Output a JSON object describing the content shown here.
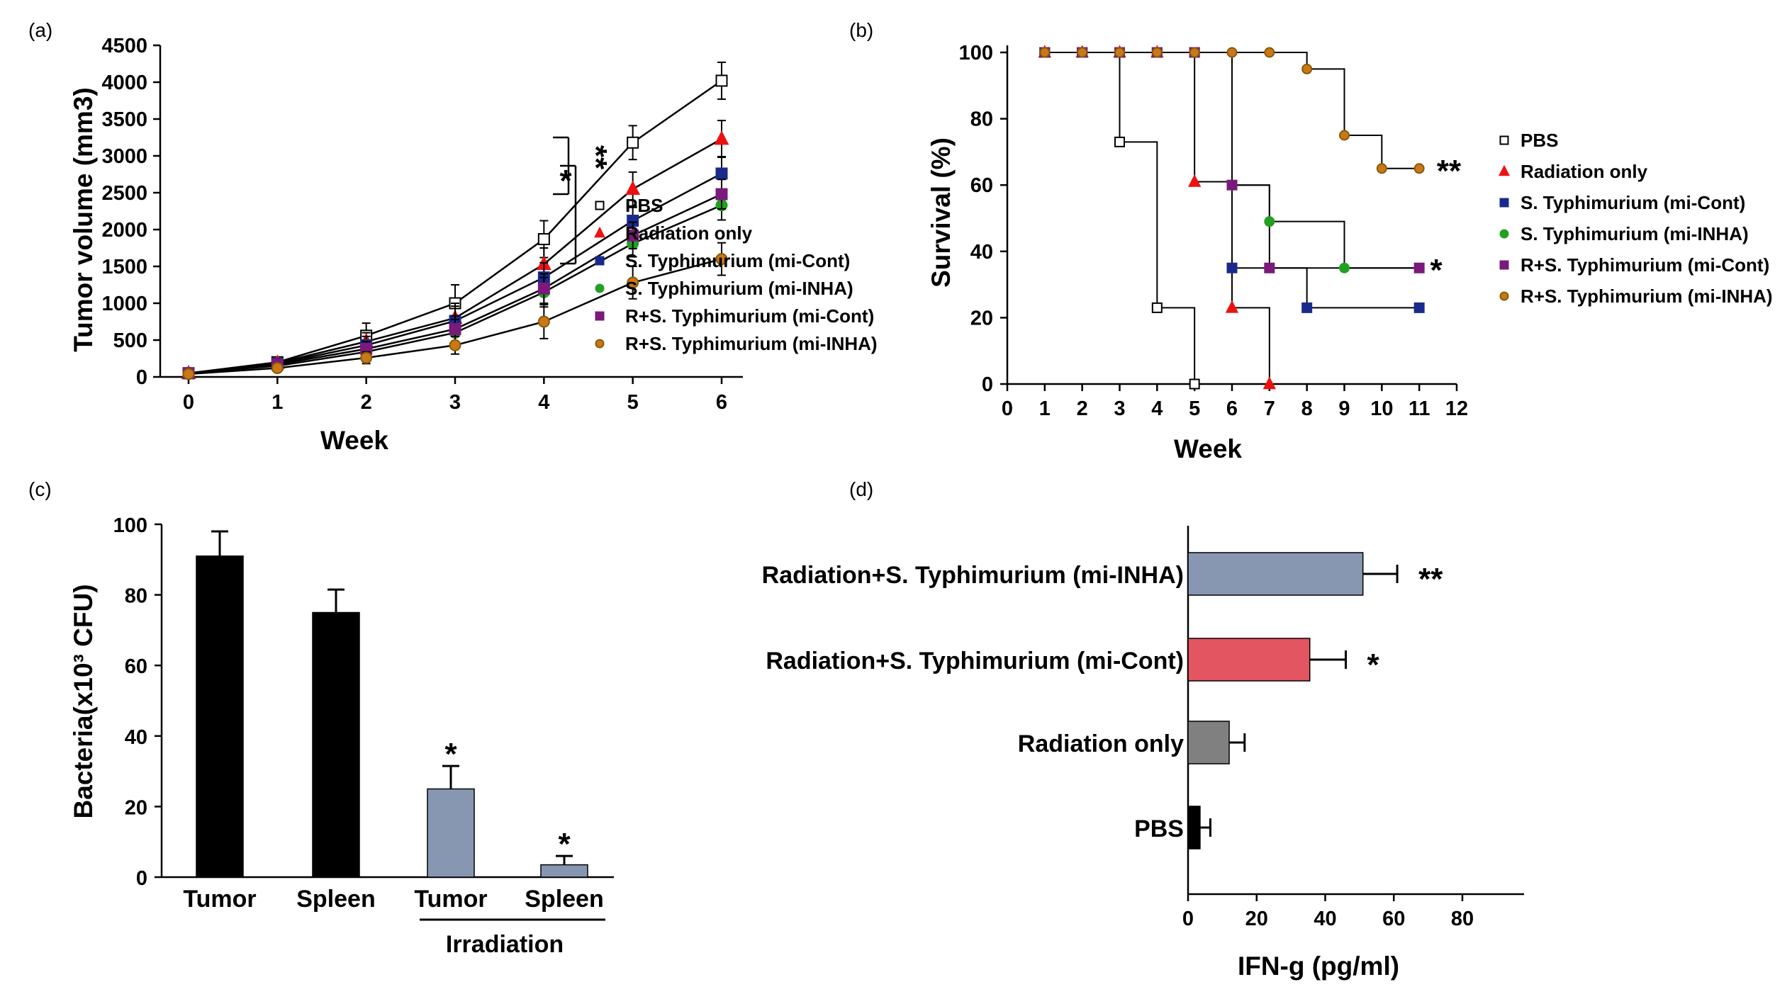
{
  "chart_data": [
    {
      "panel": "(a)",
      "type": "line",
      "xlabel": "Week",
      "ylabel": "Tumor volume (mm3)",
      "x": [
        0,
        1,
        2,
        3,
        4,
        5,
        6
      ],
      "xlim": [
        0,
        6
      ],
      "ylim": [
        0,
        4500
      ],
      "yticks": [
        0,
        500,
        1000,
        1500,
        2000,
        2500,
        3000,
        3500,
        4000,
        4500
      ],
      "legend_position": "right",
      "series": [
        {
          "name": "PBS",
          "color": "#000000",
          "fill": "#ffffff",
          "marker": "square",
          "values": [
            50,
            200,
            560,
            1000,
            1870,
            3180,
            4020
          ],
          "errors": [
            30,
            60,
            170,
            250,
            250,
            230,
            250
          ]
        },
        {
          "name": "Radiation only",
          "color": "#ee1111",
          "fill": "#ee1111",
          "marker": "triangle",
          "values": [
            50,
            190,
            480,
            800,
            1530,
            2550,
            3230
          ],
          "errors": [
            30,
            50,
            120,
            200,
            220,
            230,
            250
          ]
        },
        {
          "name": "S. Typhimurium (mi-Cont)",
          "color": "#1a2a8c",
          "fill": "#1a2a8c",
          "marker": "square",
          "values": [
            50,
            180,
            430,
            760,
            1350,
            2120,
            2760
          ],
          "errors": [
            30,
            50,
            120,
            200,
            200,
            180,
            230
          ]
        },
        {
          "name": "S. Typhimurium (mi-INHA)",
          "color": "#22a022",
          "fill": "#22a022",
          "marker": "circle",
          "values": [
            50,
            150,
            340,
            600,
            1150,
            1810,
            2330
          ],
          "errors": [
            30,
            40,
            100,
            180,
            200,
            180,
            200
          ]
        },
        {
          "name": "R+S. Typhimurium (mi-Cont)",
          "color": "#7a1a7a",
          "fill": "#7a1a7a",
          "marker": "square",
          "values": [
            50,
            170,
            380,
            650,
            1200,
            1920,
            2480
          ],
          "errors": [
            30,
            40,
            100,
            180,
            200,
            180,
            200
          ]
        },
        {
          "name": "R+S. Typhimurium (mi-INHA)",
          "color": "#8a5a00",
          "fill": "#c8781a",
          "marker": "circle",
          "values": [
            40,
            120,
            260,
            430,
            750,
            1280,
            1600
          ],
          "errors": [
            30,
            40,
            80,
            120,
            230,
            220,
            220
          ]
        }
      ],
      "annotations": [
        "*",
        "**"
      ]
    },
    {
      "panel": "(b)",
      "type": "line",
      "step": true,
      "xlabel": "Week",
      "ylabel": "Survival (%)",
      "xlim": [
        0,
        12
      ],
      "ylim": [
        0,
        100
      ],
      "xticks": [
        0,
        1,
        2,
        3,
        4,
        5,
        6,
        7,
        8,
        9,
        10,
        11,
        12
      ],
      "yticks": [
        0,
        20,
        40,
        60,
        80,
        100
      ],
      "legend_position": "right",
      "series": [
        {
          "name": "PBS",
          "color": "#000000",
          "fill": "#ffffff",
          "marker": "square",
          "x": [
            1,
            2,
            3,
            4,
            5
          ],
          "values": [
            100,
            100,
            73,
            23,
            0
          ]
        },
        {
          "name": "Radiation only",
          "color": "#ee1111",
          "fill": "#ee1111",
          "marker": "triangle",
          "x": [
            1,
            2,
            3,
            4,
            5,
            6,
            7
          ],
          "values": [
            100,
            100,
            100,
            100,
            61,
            23,
            0
          ]
        },
        {
          "name": "S. Typhimurium (mi-Cont)",
          "color": "#1a2a8c",
          "fill": "#1a2a8c",
          "marker": "square",
          "x": [
            1,
            2,
            3,
            4,
            5,
            6,
            8,
            11
          ],
          "values": [
            100,
            100,
            100,
            100,
            100,
            35,
            23,
            23
          ]
        },
        {
          "name": "S. Typhimurium (mi-INHA)",
          "color": "#22a022",
          "fill": "#22a022",
          "marker": "circle",
          "x": [
            1,
            2,
            3,
            4,
            5,
            6,
            7,
            9,
            11
          ],
          "values": [
            100,
            100,
            100,
            100,
            100,
            60,
            49,
            35,
            35
          ]
        },
        {
          "name": "R+S. Typhimurium (mi-Cont)",
          "color": "#7a1a7a",
          "fill": "#7a1a7a",
          "marker": "square",
          "x": [
            1,
            2,
            3,
            4,
            5,
            6,
            7,
            11
          ],
          "values": [
            100,
            100,
            100,
            100,
            100,
            60,
            35,
            35
          ]
        },
        {
          "name": "R+S. Typhimurium (mi-INHA)",
          "color": "#8a5a00",
          "fill": "#c8781a",
          "marker": "circle",
          "x": [
            1,
            2,
            3,
            4,
            5,
            6,
            7,
            8,
            9,
            10,
            11
          ],
          "values": [
            100,
            100,
            100,
            100,
            100,
            100,
            100,
            95,
            75,
            65,
            65
          ]
        }
      ],
      "annotations": [
        "**",
        "*"
      ]
    },
    {
      "panel": "(c)",
      "type": "bar",
      "ylabel": "Bacteria(x10³ CFU)",
      "categories": [
        "Tumor",
        "Spleen",
        "Tumor",
        "Spleen"
      ],
      "group_label": "Irradiation",
      "values": [
        91,
        75,
        25,
        3.5
      ],
      "errors": [
        7,
        6.5,
        6.5,
        2.5
      ],
      "colors": [
        "#000000",
        "#000000",
        "#8797b2",
        "#8797b2"
      ],
      "significance": [
        "",
        "",
        "*",
        "*"
      ],
      "ylim": [
        0,
        100
      ],
      "yticks": [
        0,
        20,
        40,
        60,
        80,
        100
      ]
    },
    {
      "panel": "(d)",
      "type": "bar",
      "orientation": "horizontal",
      "xlabel": "IFN-g (pg/ml)",
      "categories": [
        "Radiation+S. Typhimurium  (mi-INHA)",
        "Radiation+S. Typhimurium  (mi-Cont)",
        "Radiation only",
        "PBS"
      ],
      "values": [
        51,
        35.5,
        12,
        3.5
      ],
      "errors": [
        10,
        10.5,
        4.5,
        3
      ],
      "colors": [
        "#8797b2",
        "#e25561",
        "#808080",
        "#000000"
      ],
      "significance": [
        "**",
        "*",
        "",
        ""
      ],
      "xlim": [
        0,
        90
      ],
      "xticks": [
        0,
        20,
        40,
        60,
        80
      ]
    }
  ]
}
